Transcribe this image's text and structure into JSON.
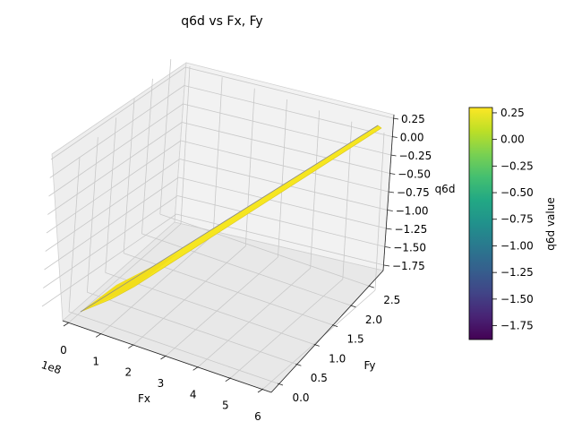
{
  "chart_data": {
    "type": "surface3d",
    "title": "q6d vs Fx, Fy",
    "xlabel": "Fx",
    "ylabel": "Fy",
    "zlabel": "q6d",
    "x_offset_label": "1e8",
    "x_ticks": [
      "0",
      "1",
      "2",
      "3",
      "4",
      "5",
      "6"
    ],
    "y_ticks": [
      "0.0",
      "0.5",
      "1.0",
      "1.5",
      "2.0",
      "2.5"
    ],
    "z_ticks": [
      "0.25",
      "0.00",
      "−0.25",
      "−0.50",
      "−0.75",
      "−1.00",
      "−1.25",
      "−1.50",
      "−1.75"
    ],
    "z_tick_values": [
      0.25,
      0.0,
      -0.25,
      -0.5,
      -0.75,
      -1.0,
      -1.25,
      -1.5,
      -1.75
    ],
    "xlim": [
      0,
      6
    ],
    "ylim": [
      0,
      2.8
    ],
    "zlim": [
      -1.9,
      0.3
    ],
    "surface": {
      "start": {
        "x": 0.0,
        "y": 0.0,
        "z": -1.85
      },
      "end": {
        "x": 6.0,
        "y": 2.7,
        "z": 0.3
      },
      "color": "#f6e620"
    },
    "colorbar": {
      "label": "q6d value",
      "ticks": [
        "0.25",
        "0.00",
        "−0.25",
        "−0.50",
        "−0.75",
        "−1.00",
        "−1.25",
        "−1.50",
        "−1.75"
      ],
      "values": [
        0.25,
        0.0,
        -0.25,
        -0.5,
        -0.75,
        -1.0,
        -1.25,
        -1.5,
        -1.75
      ],
      "range": [
        -1.88,
        0.3
      ],
      "colormap": "viridis"
    },
    "grid": true
  }
}
